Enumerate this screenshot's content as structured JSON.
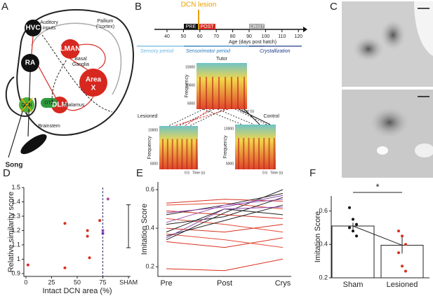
{
  "panels": {
    "A": {
      "label": "A",
      "texts": [
        "HVC",
        "Auditory",
        "inputs",
        "Pallium",
        "(\"cortex)",
        "LMAN",
        "RA",
        "Basal",
        "Ganglia",
        "Area",
        "X",
        "DLM",
        "Thalamus",
        "DCN",
        "DTZ",
        "Brainstem",
        "Song"
      ]
    },
    "B": {
      "label": "B",
      "lesion": "DCN lesion",
      "phases": [
        "PRE",
        "POST",
        "CRIST"
      ],
      "ages": [
        40,
        50,
        60,
        70,
        80,
        90,
        100,
        110,
        120
      ],
      "age_label": "Age (days post hatch)",
      "periods": [
        "Sensory period",
        "Sensorimotor period",
        "Crystallization"
      ],
      "spectrograms": [
        {
          "title": "Tutor",
          "ylabel": "Frequency",
          "yticks": [
            15000,
            10000,
            5000
          ],
          "xlabel": "Time (s)"
        },
        {
          "title": "Lesioned",
          "ylabel": "Frequency",
          "yticks": [
            10000,
            5000
          ],
          "xtick": 0.5,
          "xlabel": "Time (s)"
        },
        {
          "title": "Control",
          "ylabel": "Frequency",
          "yticks": [
            10000,
            5000
          ],
          "xtick": 0.5,
          "xlabel": "Time (s)"
        }
      ]
    },
    "C": {
      "label": "C"
    }
  },
  "chart_data": [
    {
      "type": "scatter",
      "panel_label": "D",
      "ylabel": "Relative similarity score",
      "xlabel": "Intact DCN area (%)",
      "x": [
        2,
        38,
        38,
        60,
        60,
        62,
        72,
        75,
        75,
        80
      ],
      "y": [
        0.96,
        1.25,
        0.94,
        1.16,
        1.2,
        1.01,
        1.27,
        1.2,
        1.18,
        1.42
      ],
      "point_colors": [
        "#d7301f",
        "#d7301f",
        "#d7301f",
        "#d7301f",
        "#d7301f",
        "#d7301f",
        "#d7301f",
        "#8e44ad",
        "#6a3db0",
        "#b04a9a"
      ],
      "xlim": [
        -2,
        102
      ],
      "ylim": [
        0.88,
        1.5
      ],
      "xticks": [
        0,
        25,
        50,
        75,
        {
          "value": 100,
          "label": "SHAM"
        }
      ],
      "yticks": [
        0.9,
        1,
        1.1,
        1.2,
        1.3,
        1.4,
        1.5
      ],
      "vline": 75,
      "errorbar": {
        "x": 100,
        "value": 1.23,
        "error": 0.15
      }
    },
    {
      "type": "line",
      "panel_label": "E",
      "ylabel": "Imitation Score",
      "categories": [
        "Pre",
        "Post",
        "Crys"
      ],
      "ylim": [
        0.15,
        0.64
      ],
      "yticks": [
        0.2,
        0.4,
        0.6
      ],
      "series": [
        {
          "color": "#d7301f",
          "values": [
            0.19,
            0.18,
            0.24
          ]
        },
        {
          "color": "#d7301f",
          "values": [
            0.33,
            0.3,
            0.35
          ]
        },
        {
          "color": "#e34a33",
          "values": [
            0.37,
            0.34,
            0.3
          ]
        },
        {
          "color": "#d7301f",
          "values": [
            0.4,
            0.38,
            0.42
          ]
        },
        {
          "color": "#e34a33",
          "values": [
            0.45,
            0.42,
            0.38
          ]
        },
        {
          "color": "#d7301f",
          "values": [
            0.49,
            0.47,
            0.45
          ]
        },
        {
          "color": "#e34a33",
          "values": [
            0.52,
            0.53,
            0.5
          ]
        },
        {
          "color": "#d7301f",
          "values": [
            0.53,
            0.55,
            0.54
          ]
        },
        {
          "color": "#222222",
          "values": [
            0.34,
            0.48,
            0.6
          ]
        },
        {
          "color": "#222222",
          "values": [
            0.36,
            0.44,
            0.52
          ]
        },
        {
          "color": "#222222",
          "values": [
            0.38,
            0.5,
            0.47
          ]
        },
        {
          "color": "#222222",
          "values": [
            0.42,
            0.46,
            0.56
          ]
        },
        {
          "color": "#222222",
          "values": [
            0.47,
            0.52,
            0.58
          ]
        },
        {
          "color": "#8e44ad",
          "values": [
            0.35,
            0.5,
            0.51
          ]
        },
        {
          "color": "#9b59b6",
          "values": [
            0.43,
            0.52,
            0.55
          ]
        },
        {
          "color": "#8e44ad",
          "values": [
            0.48,
            0.51,
            0.57
          ]
        }
      ]
    },
    {
      "type": "bar",
      "panel_label": "F",
      "ylabel": "Imitation Score",
      "categories": [
        "Sham",
        "Lesioned"
      ],
      "values": [
        0.51,
        0.395
      ],
      "errors": [
        0.02,
        0.05
      ],
      "point_colors": [
        "#111111",
        "#d7301f"
      ],
      "points": [
        [
          0.62,
          0.55,
          0.52,
          0.5,
          0.48,
          0.45
        ],
        [
          0.48,
          0.45,
          0.4,
          0.35,
          0.27,
          0.24
        ]
      ],
      "ylim": [
        0.2,
        0.69
      ],
      "yticks": [
        0.2,
        0.4,
        0.6
      ],
      "annotation": "*"
    }
  ]
}
